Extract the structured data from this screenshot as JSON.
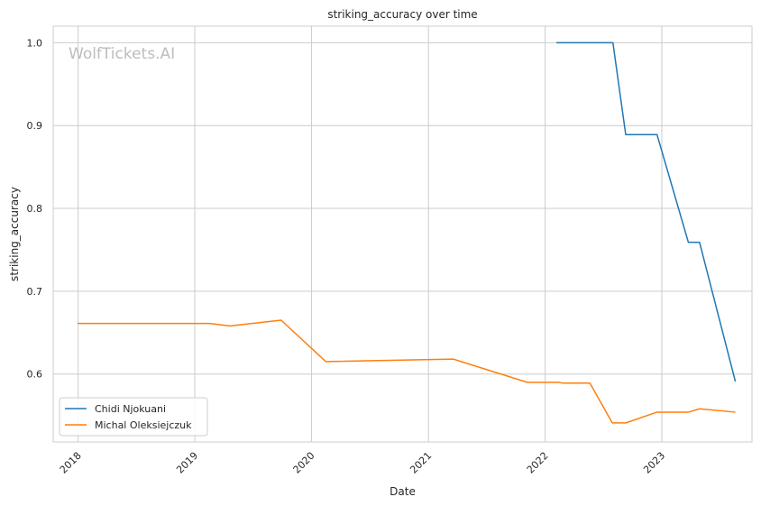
{
  "chart_data": {
    "type": "line",
    "title": "striking_accuracy over time",
    "xlabel": "Date",
    "ylabel": "striking_accuracy",
    "watermark": "WolfTickets.AI",
    "x_ticks": [
      "2018",
      "2019",
      "2020",
      "2021",
      "2022",
      "2023"
    ],
    "y_ticks": [
      "0.6",
      "0.7",
      "0.8",
      "0.9",
      "1.0"
    ],
    "xlim": [
      "2017-10-15",
      "2023-10-10"
    ],
    "ylim": [
      0.518,
      1.02
    ],
    "grid": true,
    "legend_position": "bottom-left",
    "colors": {
      "Chidi Njokuani": "#1f77b4",
      "Michal Oleksiejczuk": "#ff7f0e",
      "grid": "#cccccc",
      "axes": "#cccccc"
    },
    "series": [
      {
        "name": "Chidi Njokuani",
        "points": [
          [
            "2022-02-05",
            1.0
          ],
          [
            "2022-08-01",
            1.0
          ],
          [
            "2022-09-10",
            0.889
          ],
          [
            "2022-12-17",
            0.889
          ],
          [
            "2023-03-25",
            0.759
          ],
          [
            "2023-04-29",
            0.759
          ],
          [
            "2023-08-19",
            0.591
          ]
        ]
      },
      {
        "name": "Michal Oleksiejczuk",
        "points": [
          [
            "2017-12-30",
            0.661
          ],
          [
            "2019-02-17",
            0.661
          ],
          [
            "2019-04-20",
            0.658
          ],
          [
            "2019-09-28",
            0.665
          ],
          [
            "2020-02-15",
            0.615
          ],
          [
            "2021-03-20",
            0.618
          ],
          [
            "2021-11-06",
            0.59
          ],
          [
            "2022-02-12",
            0.59
          ],
          [
            "2022-02-26",
            0.589
          ],
          [
            "2022-05-21",
            0.589
          ],
          [
            "2022-07-30",
            0.541
          ],
          [
            "2022-09-10",
            0.541
          ],
          [
            "2022-12-17",
            0.554
          ],
          [
            "2023-03-25",
            0.554
          ],
          [
            "2023-04-29",
            0.558
          ],
          [
            "2023-08-19",
            0.554
          ]
        ]
      }
    ]
  }
}
